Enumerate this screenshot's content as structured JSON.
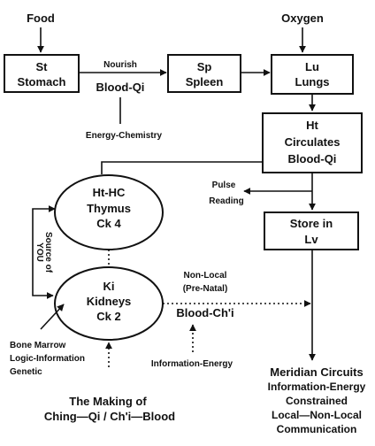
{
  "inputs": {
    "food": "Food",
    "oxygen": "Oxygen"
  },
  "stomach": {
    "line1": "St",
    "line2": "Stomach"
  },
  "spleen": {
    "line1": "Sp",
    "line2": "Spleen"
  },
  "lungs": {
    "line1": "Lu",
    "line2": "Lungs"
  },
  "heart": {
    "line1": "Ht",
    "line2": "Circulates",
    "line3": "Blood-Qi"
  },
  "liver": {
    "line1": "Store in",
    "line2": "Lv"
  },
  "thymus": {
    "line1": "Ht-HC",
    "line2": "Thymus",
    "line3": "Ck 4"
  },
  "kidneys": {
    "line1": "Ki",
    "line2": "Kidneys",
    "line3": "Ck 2"
  },
  "labels": {
    "nourish": "Nourish",
    "blood_qi": "Blood-Qi",
    "energy_chemistry": "Energy-Chemistry",
    "pulse": "Pulse",
    "reading": "Reading",
    "source_of": "Source of",
    "you": "YOU",
    "non_local": "Non-Local",
    "pre_natal": "(Pre-Natal)",
    "blood_chi": "Blood-Ch'i",
    "information_energy": "Information-Energy",
    "bone_marrow": "Bone Marrow",
    "logic_information": "Logic-Information",
    "genetic": "Genetic"
  },
  "meridian": {
    "line1": "Meridian Circuits",
    "line2": "Information-Energy",
    "line3": "Constrained",
    "line4": "Local—Non-Local",
    "line5": "Communication"
  },
  "caption": {
    "line1": "The Making of",
    "line2": "Ching—Qi / Ch'i—Blood"
  }
}
